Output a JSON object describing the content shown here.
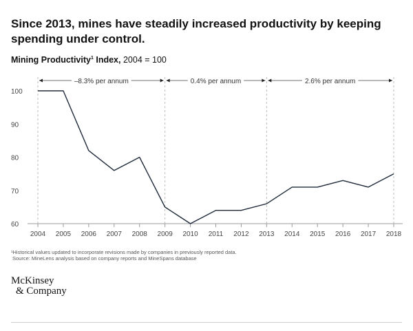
{
  "title": "Since 2013, mines have steadily increased productivity by keeping spending under control.",
  "subtitle": {
    "bold": "Mining Productivity",
    "sup": "1",
    "bold2": " Index,",
    "rest": " 2004 = 100"
  },
  "chart_data": {
    "type": "line",
    "x": [
      2004,
      2005,
      2006,
      2007,
      2008,
      2009,
      2010,
      2011,
      2012,
      2013,
      2014,
      2015,
      2016,
      2017,
      2018
    ],
    "values": [
      100,
      100,
      82,
      76,
      80,
      65,
      60,
      64,
      64,
      66,
      71,
      71,
      73,
      71,
      75
    ],
    "xtick_labels": [
      "2004",
      "2005",
      "2006",
      "2007",
      "2008",
      "2009",
      "2010",
      "2011",
      "2012",
      "2013",
      "2014",
      "2015",
      "2016",
      "2017",
      "2018"
    ],
    "ytick_labels": [
      "100",
      "90",
      "80",
      "70",
      "60"
    ],
    "yticks": [
      100,
      90,
      80,
      70,
      60
    ],
    "ylim": [
      60,
      100
    ],
    "grid": false,
    "line_color": "#1f2a3a",
    "annotations": [
      {
        "from": 2004,
        "to": 2009,
        "label": "–8.3% per annum"
      },
      {
        "from": 2009,
        "to": 2013,
        "label": "0.4% per annum"
      },
      {
        "from": 2013,
        "to": 2018,
        "label": "2.6% per annum"
      }
    ]
  },
  "footnote": "¹Historical values updated to incorporate revisions made by companies in previously reported data.",
  "source": "Source: MineLens analysis based on company reports and MineSpans database",
  "logo": {
    "line1": "McKinsey",
    "line2": "& Company"
  }
}
